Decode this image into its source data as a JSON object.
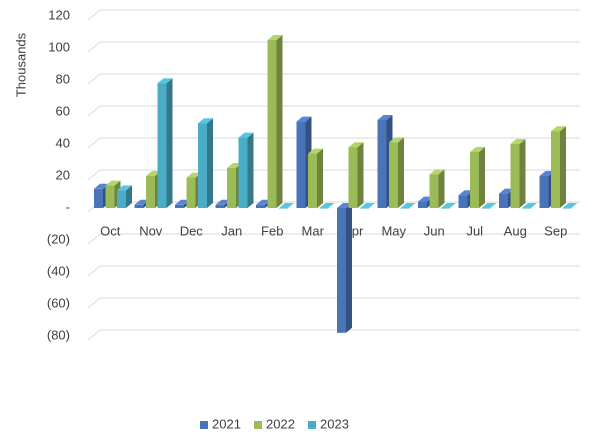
{
  "chart_data": {
    "type": "bar3d",
    "y_label": "Thousands",
    "categories": [
      "Oct",
      "Nov",
      "Dec",
      "Jan",
      "Feb",
      "Mar",
      "Apr",
      "May",
      "Jun",
      "Jul",
      "Aug",
      "Sep"
    ],
    "series": [
      {
        "name": "2021",
        "color": "#4a74b8",
        "values": [
          12,
          2,
          2,
          2,
          2,
          54,
          -78,
          55,
          4,
          8,
          9,
          20
        ]
      },
      {
        "name": "2022",
        "color": "#9bbb59",
        "values": [
          14,
          20,
          19,
          25,
          105,
          34,
          38,
          41,
          21,
          35,
          40,
          48
        ]
      },
      {
        "name": "2023",
        "color": "#4bacc6",
        "values": [
          11,
          78,
          53,
          44,
          0,
          0,
          0,
          0,
          0,
          0,
          0,
          0
        ]
      }
    ],
    "ylim": [
      -80,
      120
    ],
    "yticks": [
      {
        "value": -80,
        "label": "(80)"
      },
      {
        "value": -60,
        "label": "(60)"
      },
      {
        "value": -40,
        "label": "(40)"
      },
      {
        "value": -20,
        "label": "(20)"
      },
      {
        "value": 0,
        "label": "-"
      },
      20,
      40,
      60,
      80,
      100,
      120
    ],
    "grid": true,
    "legend": "bottom"
  }
}
